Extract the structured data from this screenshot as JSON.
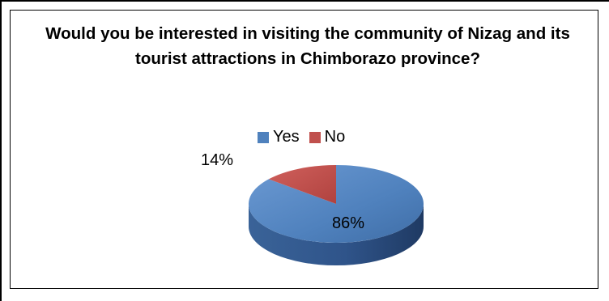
{
  "chart_data": {
    "type": "pie",
    "title": "Would you be interested in visiting the community of Nizag and its tourist attractions in Chimborazo province?",
    "categories": [
      "Yes",
      "No"
    ],
    "values": [
      86,
      14
    ],
    "data_labels": [
      "86%",
      "14%"
    ],
    "colors": [
      "#4F81BD",
      "#C0504D"
    ],
    "legend_position": "top",
    "style": "3d"
  },
  "legend": {
    "items": [
      {
        "label": "Yes",
        "color": "#4F81BD"
      },
      {
        "label": "No",
        "color": "#C0504D"
      }
    ]
  }
}
